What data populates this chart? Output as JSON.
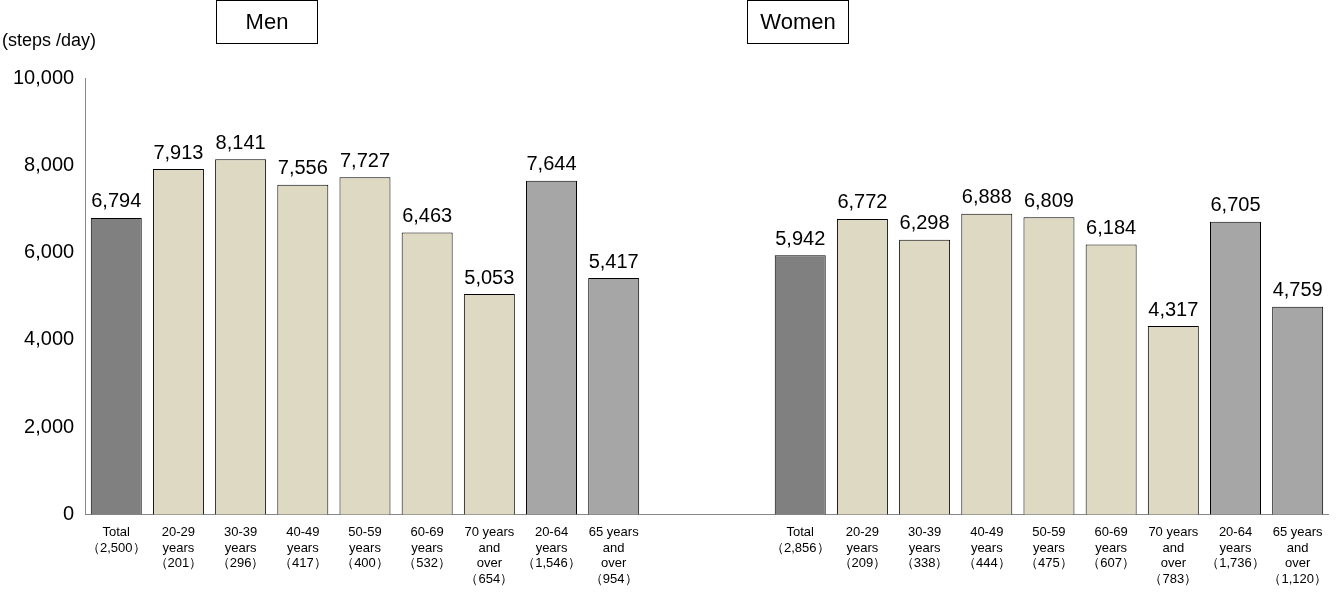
{
  "chart_data": {
    "type": "bar",
    "ylabel": "(steps /day)",
    "annotations": [
      "Men",
      "Women"
    ],
    "categories": [
      "Total\n（2,500）",
      "20-29\nyears\n（201）",
      "30-39\nyears\n（296）",
      "40-49\nyears\n（417）",
      "50-59\nyears\n（400）",
      "60-69\nyears\n（532）",
      "70 years\nand\nover\n（654）",
      "20-64\nyears\n（1,546）",
      "65 years\nand\nover\n（954）",
      null,
      null,
      "Total\n（2,856）",
      "20-29\nyears\n（209）",
      "30-39\nyears\n（338）",
      "40-49\nyears\n（444）",
      "50-59\nyears\n（475）",
      "60-69\nyears\n（607）",
      "70 years\nand\nover\n（783）",
      "20-64\nyears\n（1,736）",
      "65 years\nand\nover\n（1,120）"
    ],
    "values": [
      6794,
      7913,
      8141,
      7556,
      7727,
      6463,
      5053,
      7644,
      5417,
      null,
      null,
      5942,
      6772,
      6298,
      6888,
      6809,
      6184,
      4317,
      6705,
      4759
    ],
    "value_labels": [
      "6,794",
      "7,913",
      "8,141",
      "7,556",
      "7,727",
      "6,463",
      "5,053",
      "7,644",
      "5,417",
      null,
      null,
      "5,942",
      "6,772",
      "6,298",
      "6,888",
      "6,809",
      "6,184",
      "4,317",
      "6,705",
      "4,759"
    ],
    "colors": [
      "#808080",
      "#ddd9c3",
      "#ddd9c3",
      "#ddd9c3",
      "#ddd9c3",
      "#ddd9c3",
      "#ddd9c3",
      "#a6a6a6",
      "#a6a6a6",
      "#ffffff",
      "#ffffff",
      "#808080",
      "#ddd9c3",
      "#ddd9c3",
      "#ddd9c3",
      "#ddd9c3",
      "#ddd9c3",
      "#ddd9c3",
      "#a6a6a6",
      "#a6a6a6"
    ],
    "ylim": [
      0,
      10000
    ],
    "yticks": [
      {
        "value": 0,
        "label": "0"
      },
      {
        "value": 2000,
        "label": "2,000"
      },
      {
        "value": 4000,
        "label": "4,000"
      },
      {
        "value": 6000,
        "label": "6,000"
      },
      {
        "value": 8000,
        "label": "8,000"
      },
      {
        "value": 10000,
        "label": "10,000"
      }
    ],
    "grid": false,
    "legend": false
  }
}
